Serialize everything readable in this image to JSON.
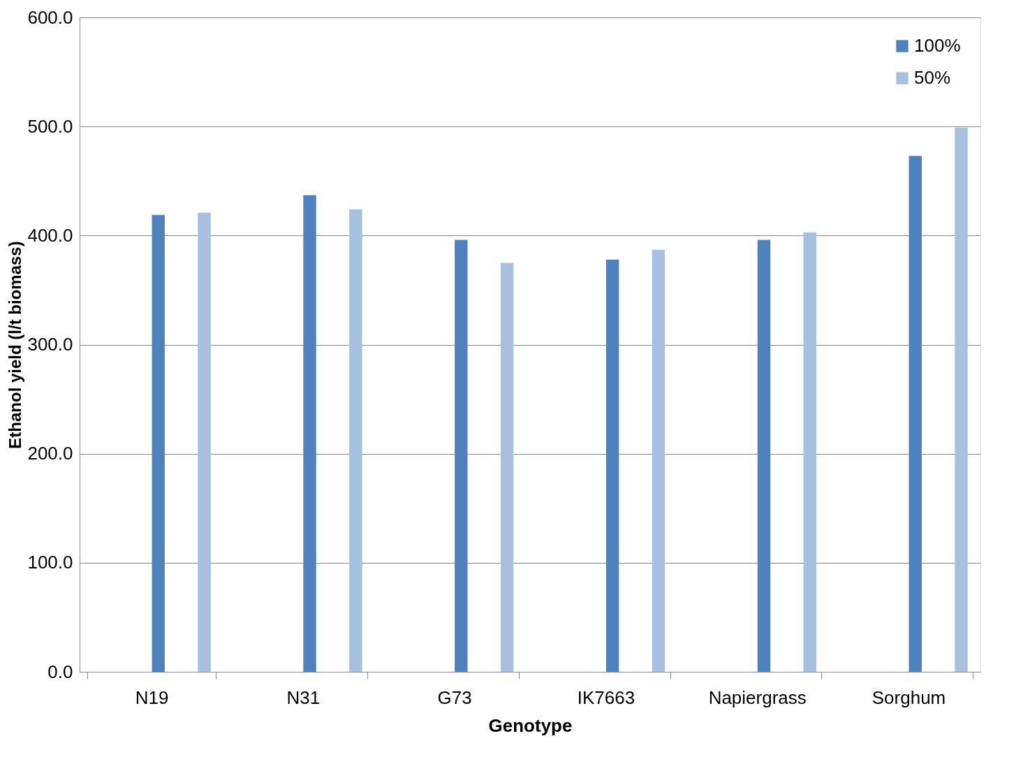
{
  "chart_data": {
    "type": "bar",
    "xlabel": "Genotype",
    "ylabel": "Ethanol yield (l/t biomass)",
    "categories": [
      "N19",
      "N31",
      "G73",
      "IK7663",
      "Napiergrass",
      "Sorghum"
    ],
    "series": [
      {
        "name": "100%",
        "color": "#4f81bd",
        "values": [
          419,
          437,
          396,
          378,
          396,
          473
        ]
      },
      {
        "name": "50%",
        "color": "#a7c0e0",
        "values": [
          421,
          424,
          375,
          387,
          403,
          499
        ]
      }
    ],
    "ylim": [
      0,
      600
    ],
    "yticks": [
      {
        "value": 0,
        "label": "0.0"
      },
      {
        "value": 100,
        "label": "100.0"
      },
      {
        "value": 200,
        "label": "200.0"
      },
      {
        "value": 300,
        "label": "300.0"
      },
      {
        "value": 400,
        "label": "400.0"
      },
      {
        "value": 500,
        "label": "500.0"
      },
      {
        "value": 600,
        "label": "600.0"
      }
    ],
    "grid": "y",
    "legend": "top right"
  }
}
